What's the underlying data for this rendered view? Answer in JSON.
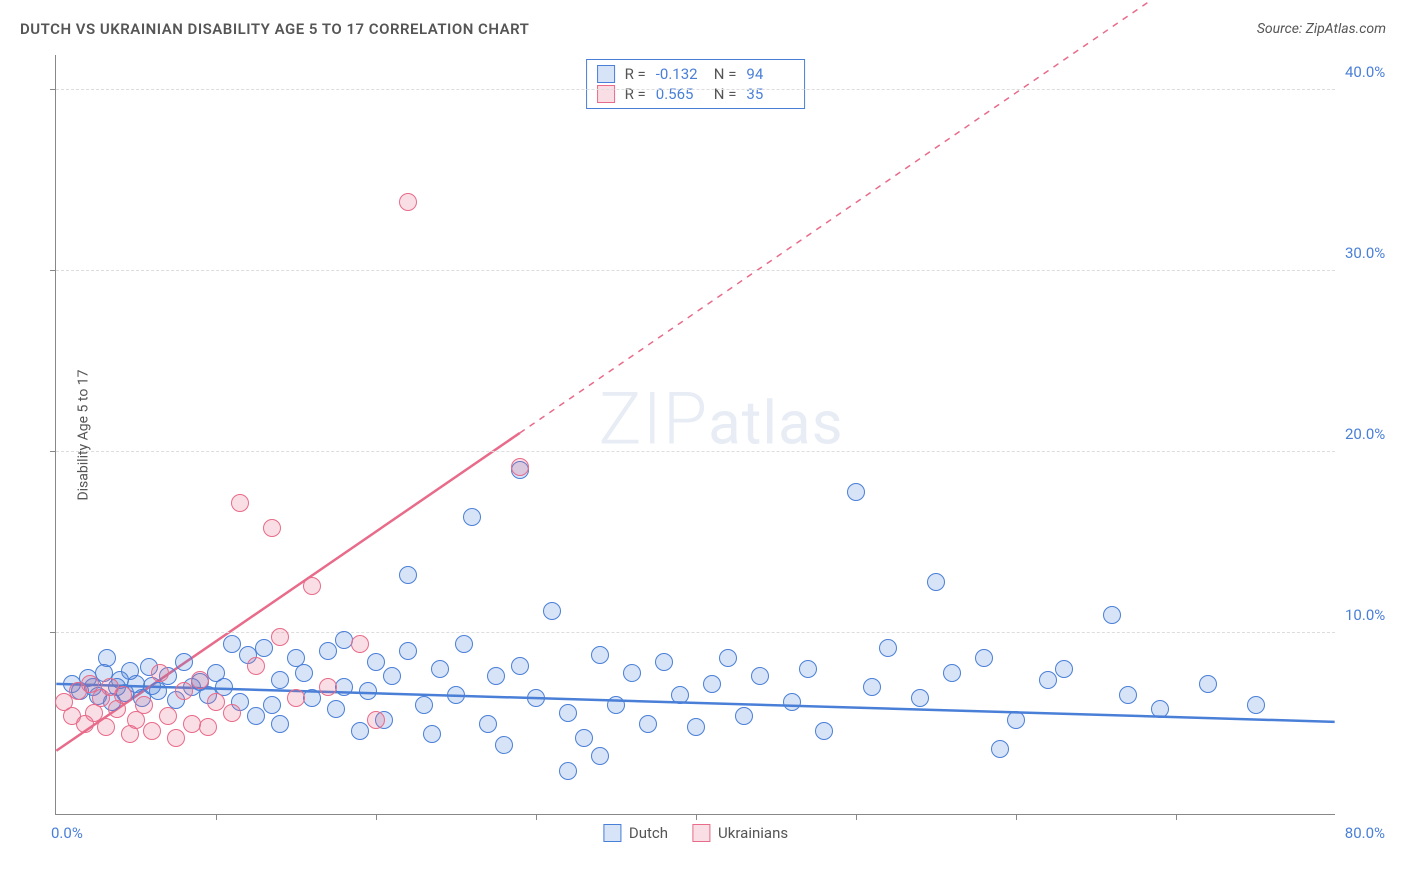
{
  "header": {
    "title": "DUTCH VS UKRAINIAN DISABILITY AGE 5 TO 17 CORRELATION CHART",
    "source": "Source: ZipAtlas.com"
  },
  "chart": {
    "type": "scatter",
    "ylabel": "Disability Age 5 to 17",
    "xlim": [
      0,
      80
    ],
    "ylim": [
      0,
      42
    ],
    "xticks": [
      10,
      20,
      30,
      40,
      50,
      60,
      70
    ],
    "yticks": [
      10,
      20,
      30,
      40
    ],
    "ytick_labels": [
      "10.0%",
      "20.0%",
      "30.0%",
      "40.0%"
    ],
    "x_left_label": "0.0%",
    "x_right_label": "80.0%",
    "background_color": "#ffffff",
    "grid_color": "#dddddd",
    "marker_radius": 9,
    "marker_border_width": 1.2,
    "marker_fill_opacity": 0.22,
    "series": [
      {
        "name": "Dutch",
        "color": "#4a7fd8",
        "fill": "rgba(74,127,216,0.22)",
        "R": "-0.132",
        "N": "94",
        "trend": {
          "x1": 0,
          "y1": 7.2,
          "x2": 80,
          "y2": 5.1,
          "dashed_from_x": null
        },
        "points": [
          [
            1,
            7.2
          ],
          [
            1.5,
            6.8
          ],
          [
            2,
            7.5
          ],
          [
            2.3,
            7.0
          ],
          [
            2.6,
            6.5
          ],
          [
            3,
            7.8
          ],
          [
            3.2,
            8.6
          ],
          [
            3.5,
            6.2
          ],
          [
            3.8,
            7.0
          ],
          [
            4,
            7.4
          ],
          [
            4.3,
            6.7
          ],
          [
            4.6,
            7.9
          ],
          [
            5,
            7.2
          ],
          [
            5.4,
            6.4
          ],
          [
            5.8,
            8.1
          ],
          [
            6,
            7.1
          ],
          [
            6.4,
            6.8
          ],
          [
            7,
            7.6
          ],
          [
            7.5,
            6.3
          ],
          [
            8,
            8.4
          ],
          [
            8.5,
            7.0
          ],
          [
            9,
            7.3
          ],
          [
            9.5,
            6.6
          ],
          [
            10,
            7.8
          ],
          [
            10.5,
            7.0
          ],
          [
            11,
            9.4
          ],
          [
            11.5,
            6.2
          ],
          [
            12,
            8.8
          ],
          [
            12.5,
            5.4
          ],
          [
            13,
            9.2
          ],
          [
            13.5,
            6.0
          ],
          [
            14,
            7.4
          ],
          [
            14,
            5.0
          ],
          [
            15,
            8.6
          ],
          [
            15.5,
            7.8
          ],
          [
            16,
            6.4
          ],
          [
            17,
            9.0
          ],
          [
            17.5,
            5.8
          ],
          [
            18,
            7.0
          ],
          [
            18,
            9.6
          ],
          [
            19,
            4.6
          ],
          [
            19.5,
            6.8
          ],
          [
            20,
            8.4
          ],
          [
            20.5,
            5.2
          ],
          [
            21,
            7.6
          ],
          [
            22,
            9.0
          ],
          [
            22,
            13.2
          ],
          [
            23,
            6.0
          ],
          [
            23.5,
            4.4
          ],
          [
            24,
            8.0
          ],
          [
            25,
            6.6
          ],
          [
            25.5,
            9.4
          ],
          [
            26,
            16.4
          ],
          [
            27,
            5.0
          ],
          [
            27.5,
            7.6
          ],
          [
            28,
            3.8
          ],
          [
            29,
            19.0
          ],
          [
            29,
            8.2
          ],
          [
            30,
            6.4
          ],
          [
            31,
            11.2
          ],
          [
            32,
            5.6
          ],
          [
            32,
            2.4
          ],
          [
            33,
            4.2
          ],
          [
            34,
            8.8
          ],
          [
            34,
            3.2
          ],
          [
            35,
            6.0
          ],
          [
            36,
            7.8
          ],
          [
            37,
            5.0
          ],
          [
            38,
            8.4
          ],
          [
            39,
            6.6
          ],
          [
            40,
            4.8
          ],
          [
            41,
            7.2
          ],
          [
            42,
            8.6
          ],
          [
            43,
            5.4
          ],
          [
            44,
            7.6
          ],
          [
            46,
            6.2
          ],
          [
            47,
            8.0
          ],
          [
            48,
            4.6
          ],
          [
            50,
            17.8
          ],
          [
            51,
            7.0
          ],
          [
            52,
            9.2
          ],
          [
            54,
            6.4
          ],
          [
            55,
            12.8
          ],
          [
            56,
            7.8
          ],
          [
            58,
            8.6
          ],
          [
            59,
            3.6
          ],
          [
            60,
            5.2
          ],
          [
            62,
            7.4
          ],
          [
            63,
            8.0
          ],
          [
            66,
            11.0
          ],
          [
            67,
            6.6
          ],
          [
            69,
            5.8
          ],
          [
            72,
            7.2
          ],
          [
            75,
            6.0
          ]
        ]
      },
      {
        "name": "Ukrainians",
        "color": "#e86b8a",
        "fill": "rgba(232,107,138,0.22)",
        "R": "0.565",
        "N": "35",
        "trend": {
          "x1": 0,
          "y1": 3.5,
          "x2": 80,
          "y2": 52.0,
          "dashed_from_x": 29
        },
        "points": [
          [
            0.5,
            6.2
          ],
          [
            1,
            5.4
          ],
          [
            1.4,
            6.8
          ],
          [
            1.8,
            5.0
          ],
          [
            2.1,
            7.2
          ],
          [
            2.4,
            5.6
          ],
          [
            2.8,
            6.4
          ],
          [
            3.1,
            4.8
          ],
          [
            3.4,
            7.0
          ],
          [
            3.8,
            5.8
          ],
          [
            4.2,
            6.6
          ],
          [
            4.6,
            4.4
          ],
          [
            5,
            5.2
          ],
          [
            5.5,
            6.0
          ],
          [
            6,
            4.6
          ],
          [
            6.5,
            7.8
          ],
          [
            7,
            5.4
          ],
          [
            7.5,
            4.2
          ],
          [
            8,
            6.8
          ],
          [
            8.5,
            5.0
          ],
          [
            9,
            7.4
          ],
          [
            9.5,
            4.8
          ],
          [
            10,
            6.2
          ],
          [
            11,
            5.6
          ],
          [
            11.5,
            17.2
          ],
          [
            12.5,
            8.2
          ],
          [
            13.5,
            15.8
          ],
          [
            14,
            9.8
          ],
          [
            15,
            6.4
          ],
          [
            16,
            12.6
          ],
          [
            17,
            7.0
          ],
          [
            19,
            9.4
          ],
          [
            20,
            5.2
          ],
          [
            22,
            33.8
          ],
          [
            29,
            19.2
          ]
        ]
      }
    ],
    "stat_legend_labels": {
      "R": "R =",
      "N": "N ="
    },
    "series_legend": [
      "Dutch",
      "Ukrainians"
    ],
    "watermark": {
      "zip": "ZIP",
      "rest": "atlas"
    }
  }
}
